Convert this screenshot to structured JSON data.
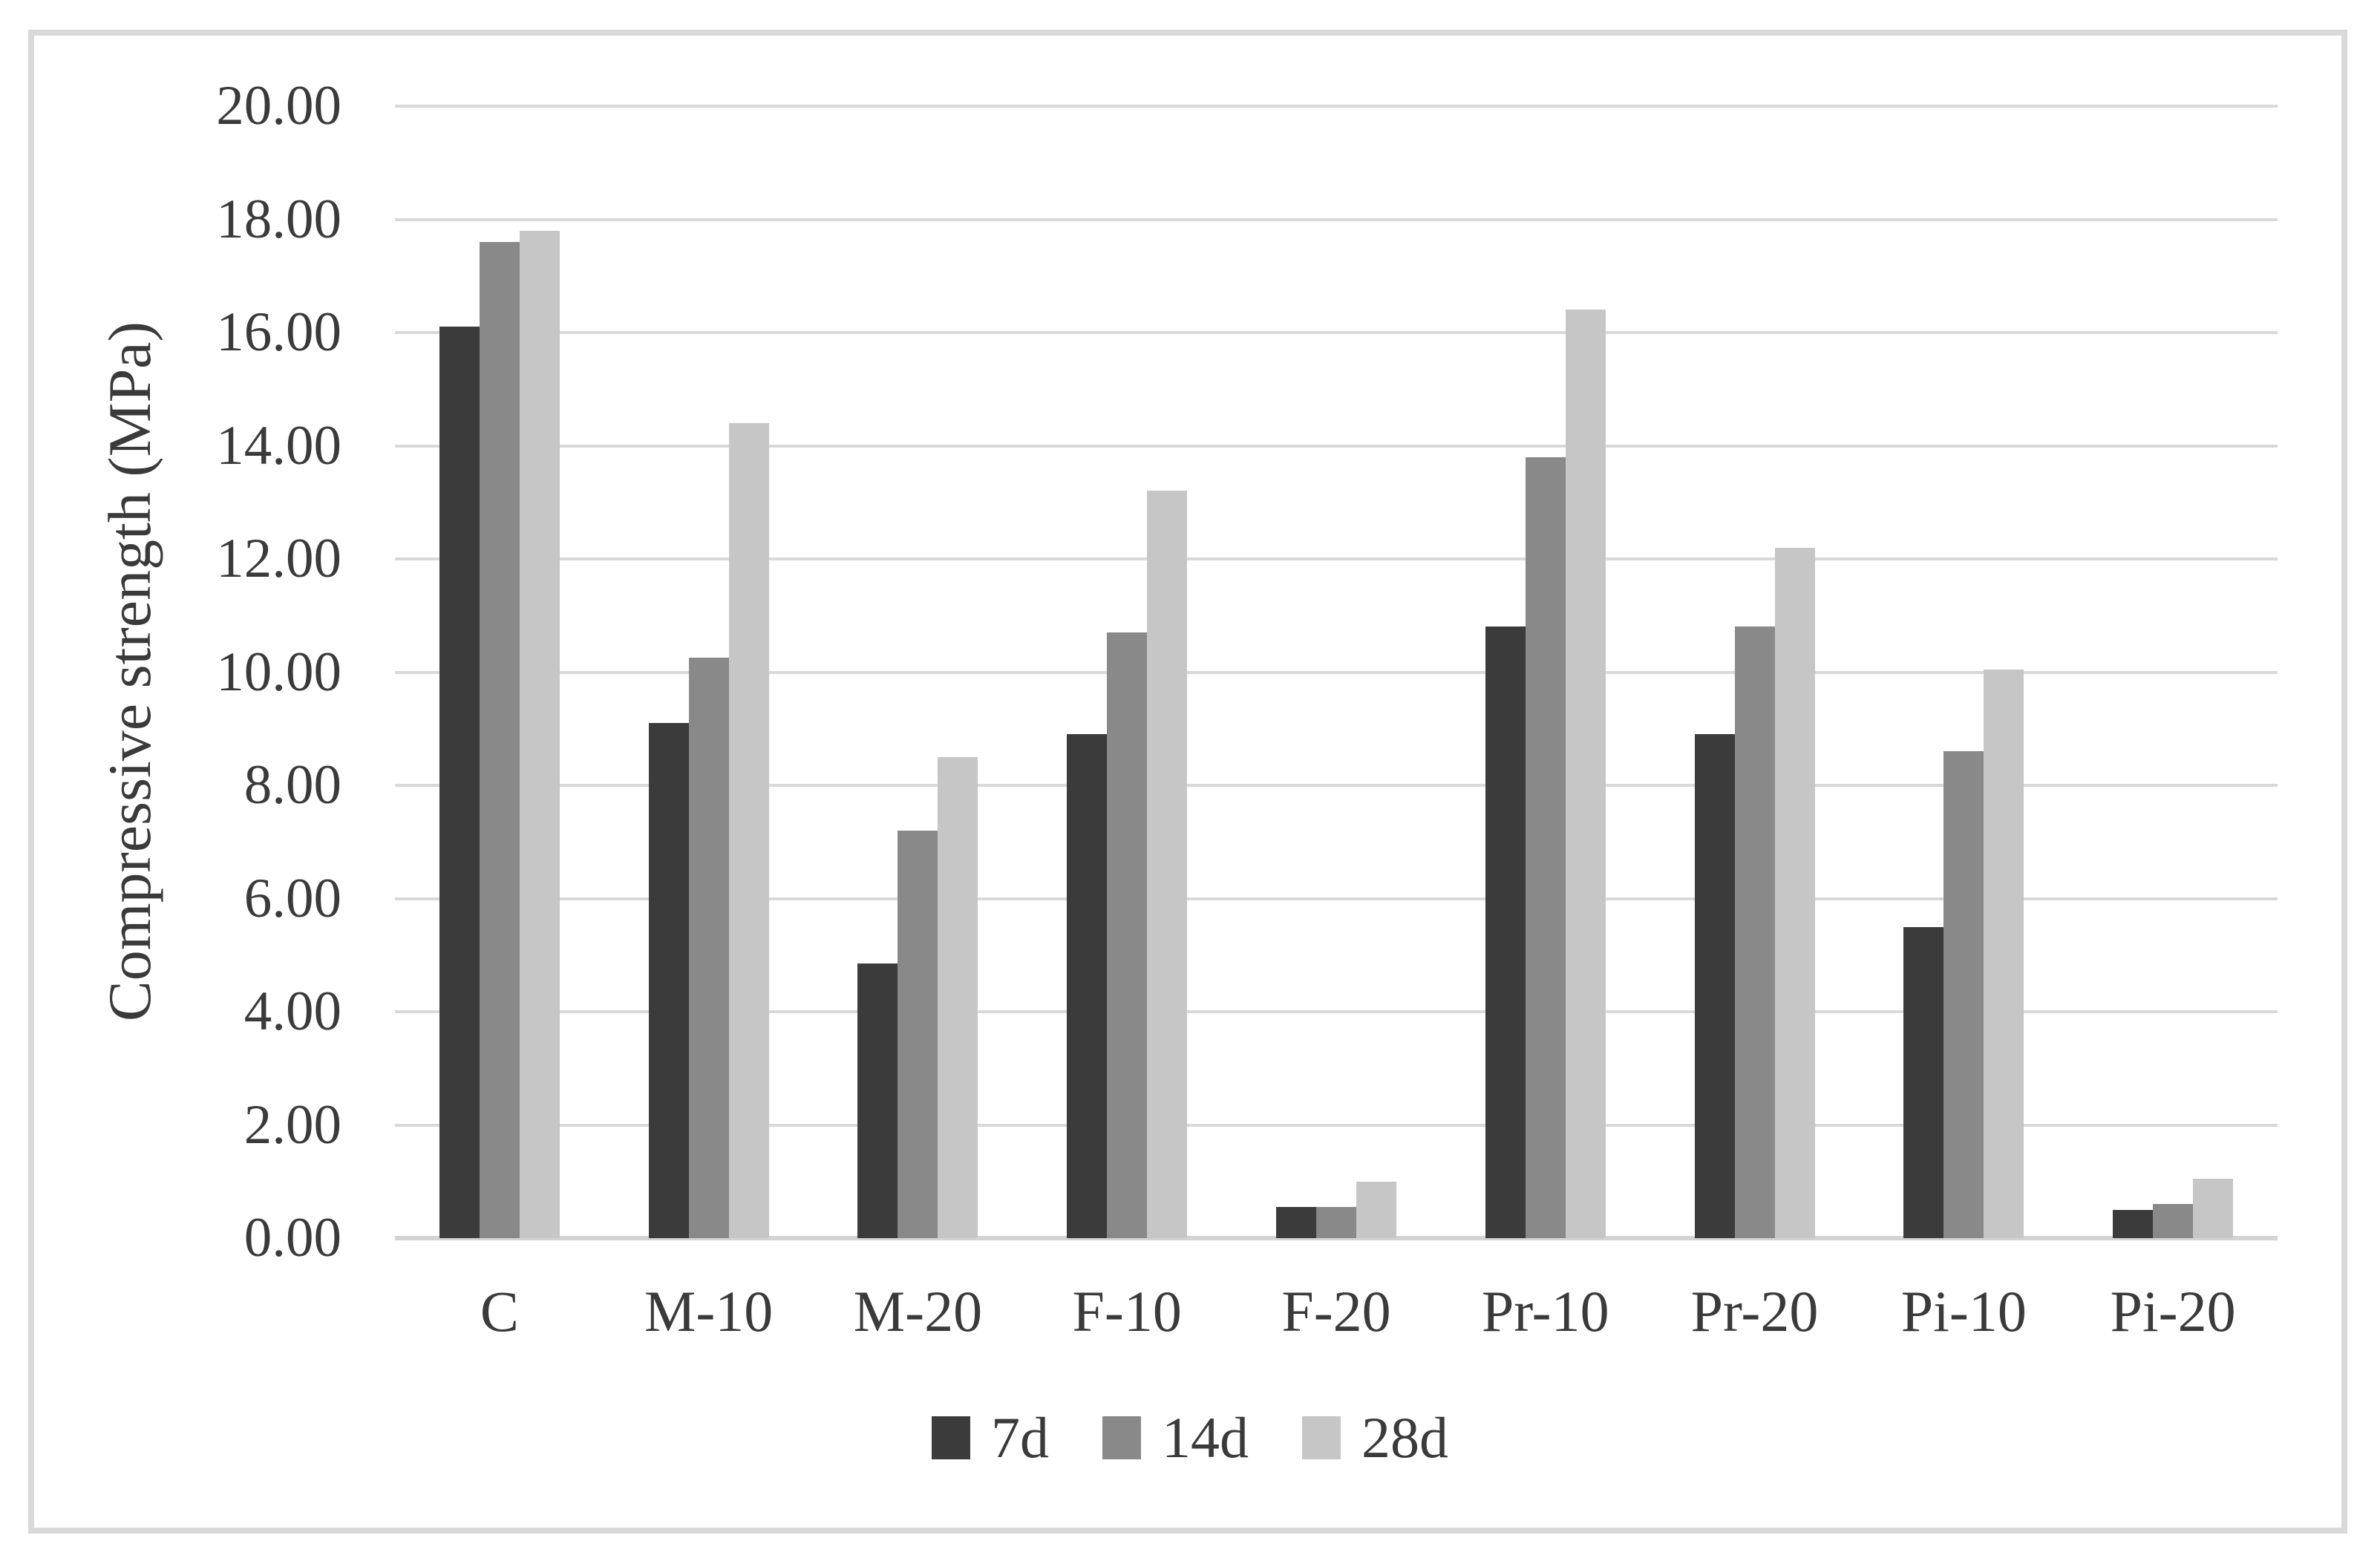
{
  "chart_data": {
    "type": "bar",
    "title": "",
    "xlabel": "",
    "ylabel": "Compressive strength (MPa)",
    "ylim": [
      0,
      20
    ],
    "ytick_step": 2,
    "ytick_labels": [
      "0.00",
      "2.00",
      "4.00",
      "6.00",
      "8.00",
      "10.00",
      "12.00",
      "14.00",
      "16.00",
      "18.00",
      "20.00"
    ],
    "grid": "horizontal",
    "legend_position": "bottom",
    "categories": [
      "C",
      "M-10",
      "M-20",
      "F-10",
      "F-20",
      "Pr-10",
      "Pr-20",
      "Pi-10",
      "Pi-20"
    ],
    "series": [
      {
        "name": "7d",
        "color": "#3b3b3b",
        "values": [
          16.1,
          9.1,
          4.85,
          8.9,
          0.55,
          10.8,
          8.9,
          5.5,
          0.5
        ]
      },
      {
        "name": "14d",
        "color": "#898989",
        "values": [
          17.6,
          10.25,
          7.2,
          10.7,
          0.55,
          13.8,
          10.8,
          8.6,
          0.6
        ]
      },
      {
        "name": "28d",
        "color": "#c6c6c6",
        "values": [
          17.8,
          14.4,
          8.5,
          13.2,
          1.0,
          16.4,
          12.2,
          10.05,
          1.05
        ]
      }
    ]
  },
  "colors": {
    "gridline": "#d9d9d9",
    "axis_line": "#d3d3d3",
    "border": "#d9d9d9",
    "text": "#3a3a3a",
    "background": "#ffffff"
  }
}
